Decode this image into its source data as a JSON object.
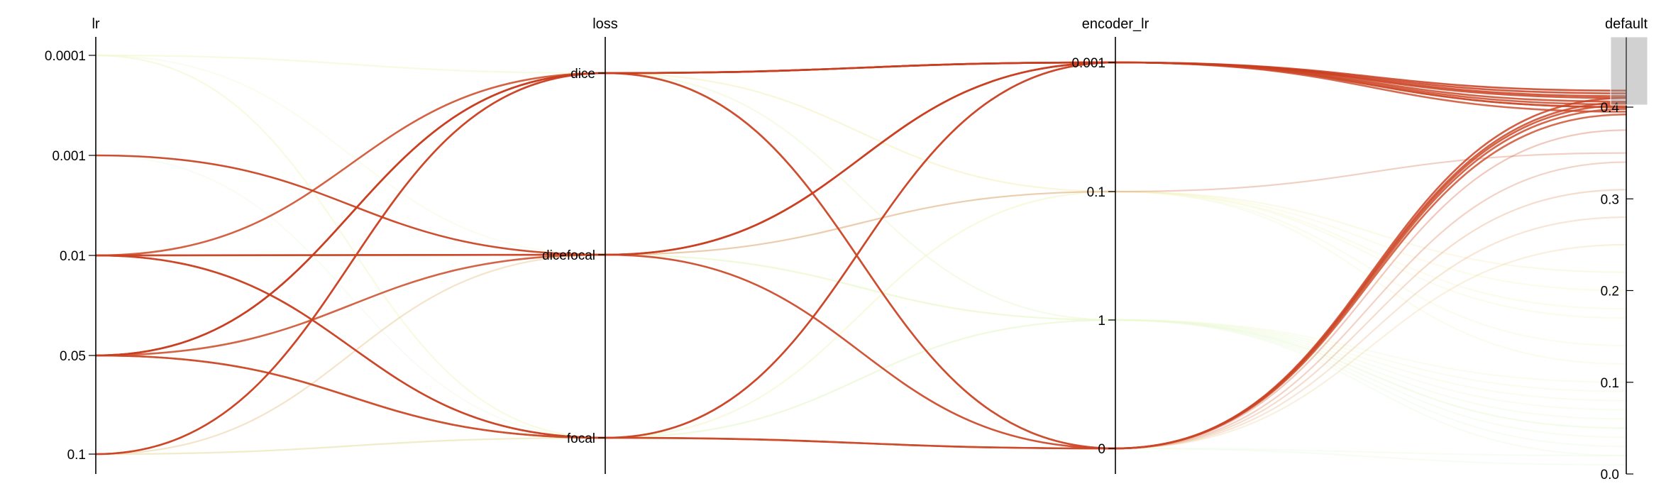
{
  "chart_data": {
    "type": "parallel_coordinates",
    "axes": [
      {
        "name": "lr",
        "kind": "categorical",
        "ticks": [
          "0.0001",
          "0.001",
          "0.01",
          "0.05",
          "0.1"
        ]
      },
      {
        "name": "loss",
        "kind": "categorical",
        "ticks": [
          "dice",
          "dicefocal",
          "focal"
        ]
      },
      {
        "name": "encoder_lr",
        "kind": "categorical",
        "ticks": [
          "0.001",
          "0.1",
          "1",
          "0"
        ]
      },
      {
        "name": "default",
        "kind": "numeric",
        "range": [
          0,
          0.42
        ],
        "ticks": [
          "0.0",
          "0.1",
          "0.2",
          "0.3",
          "0.4"
        ]
      }
    ],
    "color_scale": {
      "low": "#e8f8e0",
      "mid": "#f6f7c2",
      "high": "#c93a1c",
      "colored_by": "default"
    },
    "filter_on": {
      "axis": "default",
      "range": [
        0.385,
        0.42
      ]
    },
    "records": [
      {
        "lr": "0.001",
        "loss": "dicefocal",
        "encoder_lr": "0.001",
        "default": 0.415
      },
      {
        "lr": "0.01",
        "loss": "dicefocal",
        "encoder_lr": "0",
        "default": 0.41
      },
      {
        "lr": "0.01",
        "loss": "focal",
        "encoder_lr": "0",
        "default": 0.405
      },
      {
        "lr": "0.01",
        "loss": "focal",
        "encoder_lr": "0.001",
        "default": 0.41
      },
      {
        "lr": "0.05",
        "loss": "dice",
        "encoder_lr": "0.001",
        "default": 0.418
      },
      {
        "lr": "0.05",
        "loss": "dice",
        "encoder_lr": "0.001",
        "default": 0.4
      },
      {
        "lr": "0.05",
        "loss": "dicefocal",
        "encoder_lr": "0.001",
        "default": 0.403
      },
      {
        "lr": "0.05",
        "loss": "focal",
        "encoder_lr": "0",
        "default": 0.398
      },
      {
        "lr": "0.1",
        "loss": "dice",
        "encoder_lr": "0.001",
        "default": 0.412
      },
      {
        "lr": "0.1",
        "loss": "dice",
        "encoder_lr": "0",
        "default": 0.402
      },
      {
        "lr": "0.01",
        "loss": "dice",
        "encoder_lr": "0.001",
        "default": 0.406
      },
      {
        "lr": "0.05",
        "loss": "focal",
        "encoder_lr": "0.001",
        "default": 0.4
      },
      {
        "lr": "0.01",
        "loss": "dicefocal",
        "encoder_lr": "0.001",
        "default": 0.395
      },
      {
        "lr": "0.05",
        "loss": "dice",
        "encoder_lr": "0",
        "default": 0.392
      },
      {
        "lr": "0.001",
        "loss": "dicefocal",
        "encoder_lr": "0",
        "default": 0.375
      },
      {
        "lr": "0.01",
        "loss": "focal",
        "encoder_lr": "0",
        "default": 0.34
      },
      {
        "lr": "0.05",
        "loss": "focal",
        "encoder_lr": "0",
        "default": 0.31
      },
      {
        "lr": "0.1",
        "loss": "dicefocal",
        "encoder_lr": "0",
        "default": 0.28
      },
      {
        "lr": "0.1",
        "loss": "focal",
        "encoder_lr": "0",
        "default": 0.25
      },
      {
        "lr": "0.001",
        "loss": "dicefocal",
        "encoder_lr": "0.1",
        "default": 0.35
      },
      {
        "lr": "0.0001",
        "loss": "dice",
        "encoder_lr": "0.1",
        "default": 0.2
      },
      {
        "lr": "0.0001",
        "loss": "focal",
        "encoder_lr": "0.1",
        "default": 0.18
      },
      {
        "lr": "0.01",
        "loss": "dice",
        "encoder_lr": "0.1",
        "default": 0.22
      },
      {
        "lr": "0.05",
        "loss": "dicefocal",
        "encoder_lr": "0.1",
        "default": 0.17
      },
      {
        "lr": "0.0001",
        "loss": "dice",
        "encoder_lr": "1",
        "default": 0.05
      },
      {
        "lr": "0.001",
        "loss": "dicefocal",
        "encoder_lr": "1",
        "default": 0.06
      },
      {
        "lr": "0.01",
        "loss": "focal",
        "encoder_lr": "1",
        "default": 0.04
      },
      {
        "lr": "0.05",
        "loss": "focal",
        "encoder_lr": "1",
        "default": 0.03
      },
      {
        "lr": "0.1",
        "loss": "focal",
        "encoder_lr": "1",
        "default": 0.05
      },
      {
        "lr": "0.0001",
        "loss": "dicefocal",
        "encoder_lr": "1",
        "default": 0.08
      },
      {
        "lr": "0.01",
        "loss": "dice",
        "encoder_lr": "1",
        "default": 0.07
      },
      {
        "lr": "0.05",
        "loss": "dicefocal",
        "encoder_lr": "1",
        "default": 0.02
      },
      {
        "lr": "0.1",
        "loss": "dicefocal",
        "encoder_lr": "0.1",
        "default": 0.14
      },
      {
        "lr": "0.001",
        "loss": "focal",
        "encoder_lr": "0",
        "default": 0.01
      },
      {
        "lr": "0.1",
        "loss": "focal",
        "encoder_lr": "0",
        "default": 0.02
      },
      {
        "lr": "0.0001",
        "loss": "focal",
        "encoder_lr": "1",
        "default": 0.09
      },
      {
        "lr": "0.01",
        "loss": "dicefocal",
        "encoder_lr": "1",
        "default": 0.1
      },
      {
        "lr": "0.1",
        "loss": "focal",
        "encoder_lr": "0.1",
        "default": 0.12
      }
    ]
  }
}
